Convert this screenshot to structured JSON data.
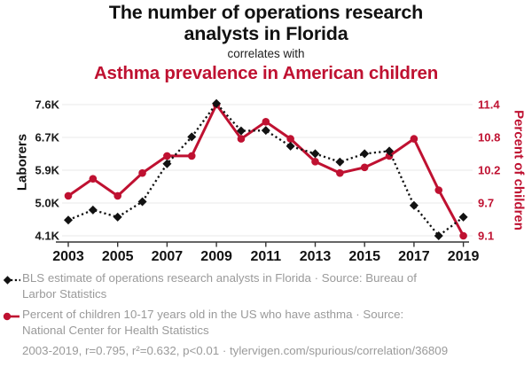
{
  "header": {
    "title_lines": [
      "The number of operations research",
      "analysts in Florida"
    ],
    "connector": "correlates with",
    "subtitle": "Asthma prevalence in American children"
  },
  "colors": {
    "accent_red": "#bf1131",
    "series_black": "#121212",
    "legend_gray": "#9a9a9a",
    "grid": "#ededed",
    "axis": "#333333"
  },
  "chart_data": {
    "type": "line",
    "title": "The number of operations research analysts in Florida correlates with Asthma prevalence in American children",
    "x": [
      2003,
      2004,
      2005,
      2006,
      2007,
      2008,
      2009,
      2010,
      2011,
      2012,
      2013,
      2014,
      2015,
      2016,
      2017,
      2018,
      2019
    ],
    "x_tick_labels": [
      "2003",
      "2005",
      "2007",
      "2009",
      "2011",
      "2013",
      "2015",
      "2017",
      "2019"
    ],
    "left_axis": {
      "label": "Laborers",
      "tick_labels": [
        "7.6K",
        "6.7K",
        "5.9K",
        "5.0K",
        "4.1K"
      ],
      "range": [
        4.1,
        7.6
      ]
    },
    "right_axis": {
      "label": "Percent of children",
      "tick_labels": [
        "11.4",
        "10.8",
        "10.2",
        "9.7",
        "9.1"
      ],
      "range": [
        9.1,
        11.4
      ]
    },
    "grid": "horizontal",
    "legend_position": "bottom",
    "series": [
      {
        "name": "BLS estimate of operations research analysts in Florida",
        "axis": "left",
        "unit": "thousands of laborers",
        "color": "#121212",
        "marker": "diamond",
        "line_style": "dotted",
        "values": [
          4.52,
          4.79,
          4.6,
          5.01,
          6.02,
          6.74,
          7.63,
          6.9,
          6.91,
          6.49,
          6.29,
          6.07,
          6.29,
          6.36,
          4.91,
          4.1,
          4.6
        ]
      },
      {
        "name": "Percent of children 10-17 years old in the US who have asthma",
        "axis": "right",
        "unit": "percent",
        "color": "#bf1131",
        "marker": "circle",
        "line_style": "solid",
        "values": [
          9.8,
          10.1,
          9.8,
          10.2,
          10.5,
          10.5,
          11.4,
          10.8,
          11.1,
          10.8,
          10.4,
          10.2,
          10.3,
          10.5,
          10.8,
          9.9,
          9.1
        ]
      }
    ]
  },
  "legend": {
    "items": [
      {
        "marker": "black-diamond-dotted",
        "lines": [
          "BLS estimate of operations research analysts in Florida · Source: Bureau of",
          "Larbor Statistics"
        ]
      },
      {
        "marker": "red-circle-solid",
        "lines": [
          "Percent of children 10-17 years old in the US who have asthma · Source:",
          "National Center for Health Statistics"
        ]
      }
    ],
    "footnote": "2003-2019, r=0.795, r²=0.632, p<0.01 · tylervigen.com/spurious/correlation/36809"
  }
}
